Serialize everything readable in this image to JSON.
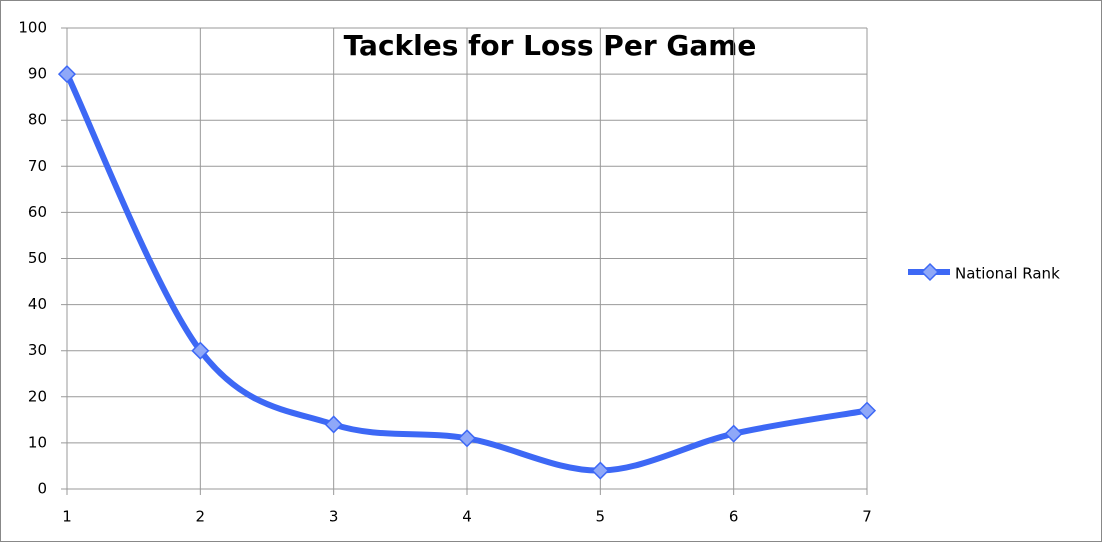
{
  "chart_data": {
    "type": "line",
    "title": "Tackles for Loss Per Game",
    "x": [
      1,
      2,
      3,
      4,
      5,
      6,
      7
    ],
    "series": [
      {
        "name": "National Rank",
        "color": "#3d68f5",
        "values": [
          90,
          30,
          14,
          11,
          4,
          12,
          17
        ]
      }
    ],
    "xlim": [
      1,
      7
    ],
    "xticks": [
      1,
      2,
      3,
      4,
      5,
      6,
      7
    ],
    "ylim": [
      0,
      100
    ],
    "yticks": [
      0,
      10,
      20,
      30,
      40,
      50,
      60,
      70,
      80,
      90,
      100
    ],
    "grid": true,
    "smooth": true,
    "legend": "right"
  }
}
